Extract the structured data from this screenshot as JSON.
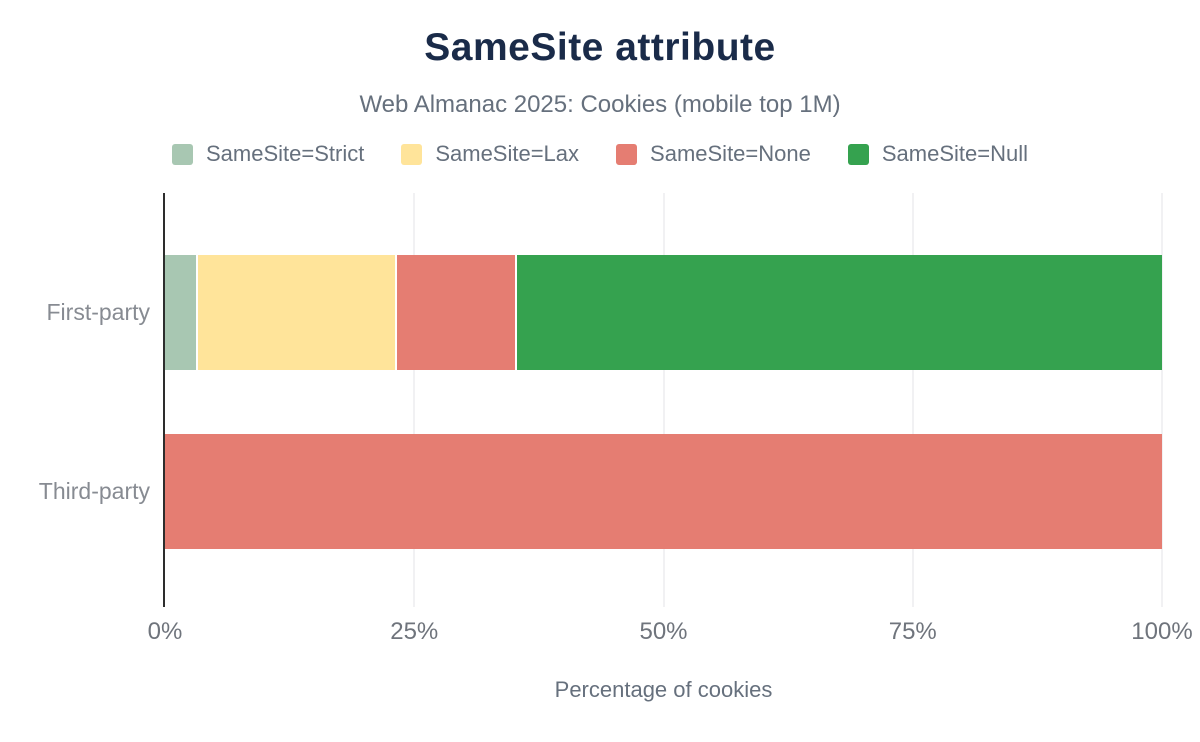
{
  "chart_data": {
    "type": "bar",
    "orientation": "horizontal",
    "stacked": true,
    "title": "SameSite attribute",
    "subtitle": "Web Almanac 2025: Cookies (mobile top 1M)",
    "xlabel": "Percentage of cookies",
    "categories": [
      "First-party",
      "Third-party"
    ],
    "series": [
      {
        "name": "SameSite=Strict",
        "color": "#a8c7b2",
        "values": [
          3.3,
          0
        ]
      },
      {
        "name": "SameSite=Lax",
        "color": "#ffe49a",
        "values": [
          20.0,
          0
        ]
      },
      {
        "name": "SameSite=None",
        "color": "#e57d72",
        "values": [
          12.0,
          100
        ]
      },
      {
        "name": "SameSite=Null",
        "color": "#35a24f",
        "values": [
          64.7,
          0
        ]
      }
    ],
    "x_ticks": [
      "0%",
      "25%",
      "50%",
      "75%",
      "100%"
    ],
    "xlim": [
      0,
      100
    ],
    "grid": "vertical-light",
    "legend_position": "top",
    "colors": {
      "title": "#1a2b49",
      "subtitle_text": "#66707d",
      "axis_line": "#2d2d2d",
      "gridline": "#f1f1f3",
      "tick_text": "#6f747c",
      "category_text": "#878b92",
      "background": "#ffffff"
    }
  }
}
